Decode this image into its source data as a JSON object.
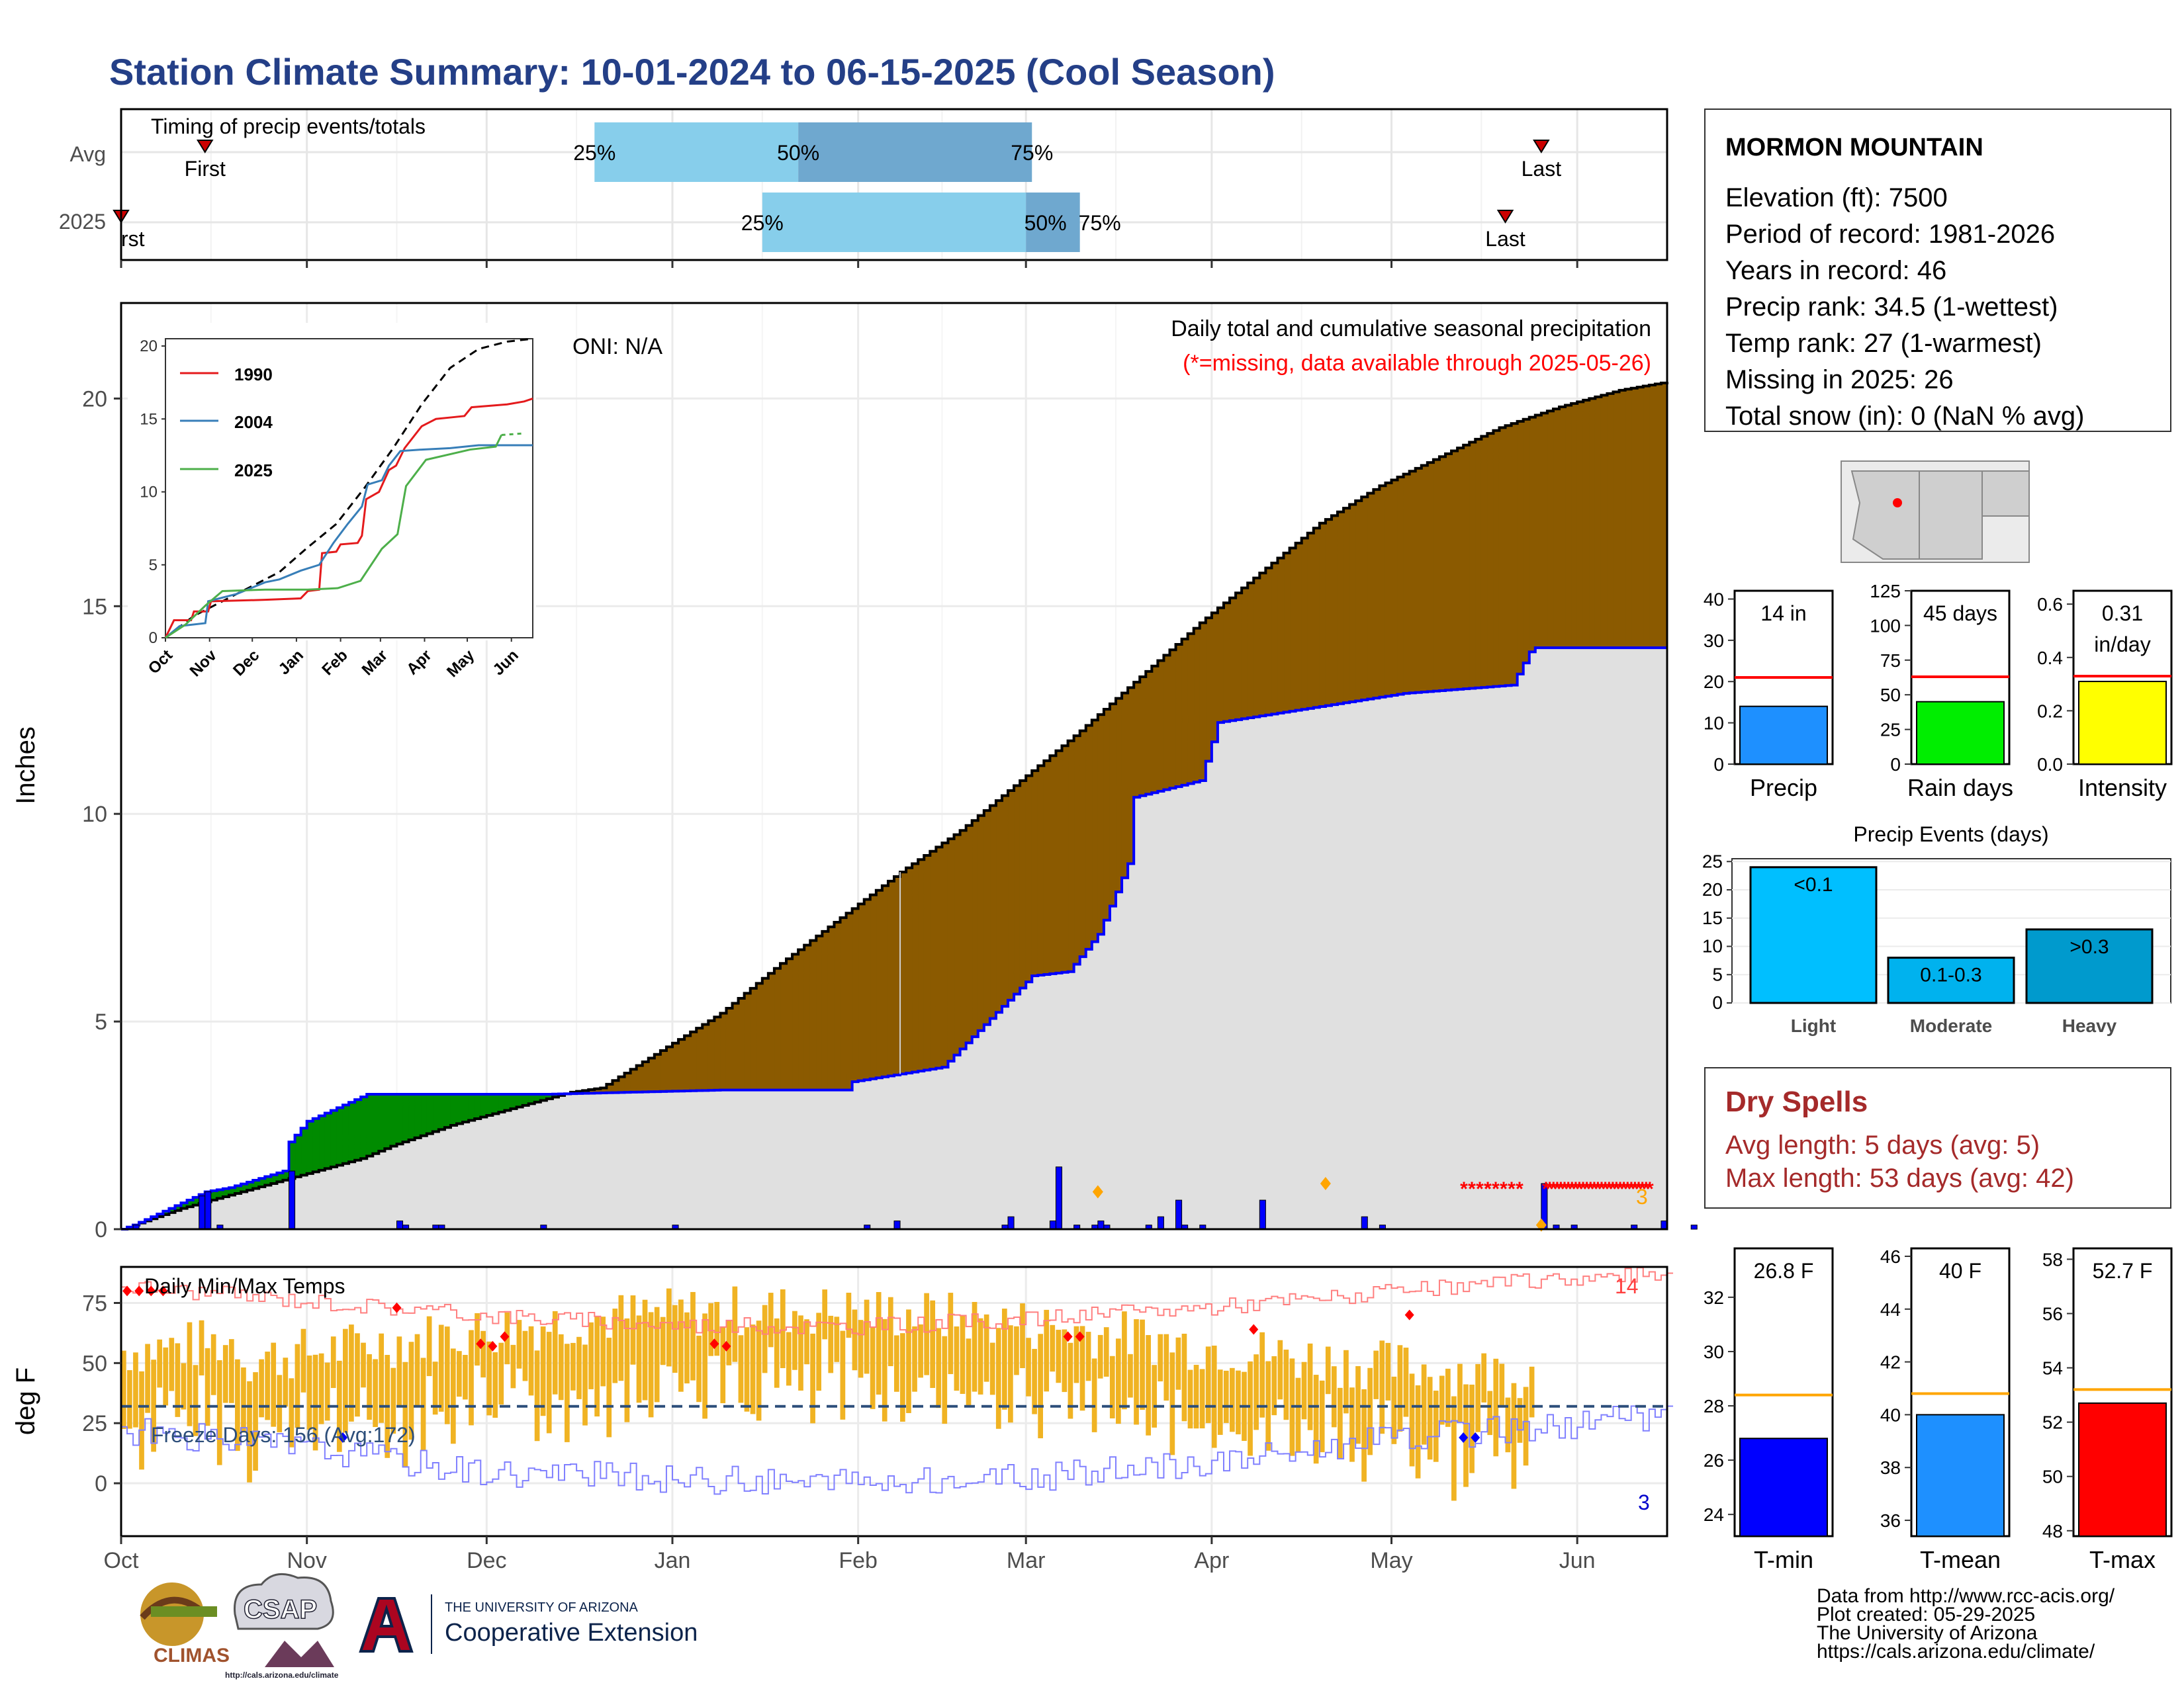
{
  "title": "Station Climate Summary: 10-01-2024 to 06-15-2025 (Cool Season)",
  "colors": {
    "title": "#243f87",
    "cum_avg_fill": "#8b5a00",
    "cum_surplus_fill": "#008b00",
    "cum_current_line": "#0000ff",
    "missing": "#ff0000",
    "temp_bar": "#f0b323",
    "record_high": "#ff7f7f",
    "record_low": "#8080ff",
    "freeze_line": "#2c4e7a",
    "dry_spells": "#a52a2a"
  },
  "month_labels": [
    "Oct",
    "Nov",
    "Dec",
    "Jan",
    "Feb",
    "Mar",
    "Apr",
    "May",
    "Jun"
  ],
  "timing": {
    "title": "Timing of precip events/totals",
    "row_labels": [
      "Avg",
      "2025"
    ],
    "first_label": "First",
    "first_label_2025": "rst",
    "last_label": "Last",
    "pct_labels": [
      "25%",
      "50%",
      "75%"
    ]
  },
  "precip_panel": {
    "ylabel": "Inches",
    "ticks": [
      "0",
      "5",
      "10",
      "15",
      "20"
    ],
    "oni_text": "ONI: N/A",
    "caption": "Daily total and cumulative seasonal precipitation",
    "missing_note": "(*=missing, data available through 2025-05-26)",
    "corner_count": "3",
    "inset": {
      "ticks": [
        "0",
        "5",
        "10",
        "15",
        "20"
      ],
      "month_labels": [
        "Oct",
        "Nov",
        "Dec",
        "Jan",
        "Feb",
        "Mar",
        "Apr",
        "May",
        "Jun"
      ],
      "legend": [
        {
          "name": "1990",
          "color": "#e41a1c"
        },
        {
          "name": "2004",
          "color": "#377eb8"
        },
        {
          "name": "2025",
          "color": "#4daf4a"
        }
      ]
    }
  },
  "temp_panel": {
    "ylabel": "deg F",
    "title": "Daily Min/Max Temps",
    "ticks": [
      "0",
      "25",
      "50",
      "75"
    ],
    "freeze_text": "Freeze Days: 156 (Avg:172)",
    "high_count": "14",
    "low_count": "3"
  },
  "station": {
    "name": "MORMON MOUNTAIN",
    "lines": [
      "Elevation (ft): 7500",
      "Period of record: 1981-2026",
      "Years in record: 46",
      "Precip rank: 34.5 (1-wettest)",
      "Temp rank: 27 (1-warmest)",
      "Missing in 2025: 26",
      "Total snow (in): 0 (NaN % avg)"
    ]
  },
  "summary_bars": [
    {
      "label": "Precip",
      "value_text": "14 in",
      "value": 14,
      "avg": 21,
      "ymax": 42,
      "ticks": [
        "0",
        "10",
        "20",
        "30",
        "40"
      ],
      "color": "#1e90ff"
    },
    {
      "label": "Rain days",
      "value_text": "45 days",
      "value": 45,
      "avg": 63,
      "ymax": 125,
      "ticks": [
        "0",
        "25",
        "50",
        "75",
        "100",
        "125"
      ],
      "color": "#00ee00"
    },
    {
      "label": "Intensity",
      "value_text": "0.31 in/day",
      "value": 0.31,
      "avg": 0.33,
      "ymax": 0.65,
      "ticks": [
        "0.0",
        "0.2",
        "0.4",
        "0.6"
      ],
      "color": "#ffff00"
    }
  ],
  "precip_events": {
    "title": "Precip Events (days)",
    "ticks": [
      "0",
      "5",
      "10",
      "15",
      "20",
      "25"
    ],
    "bars": [
      {
        "category": "Light",
        "label": "<0.1",
        "value": 24,
        "color": "#00bfff"
      },
      {
        "category": "Moderate",
        "label": "0.1-0.3",
        "value": 8,
        "color": "#00b2ee"
      },
      {
        "category": "Heavy",
        "label": ">0.3",
        "value": 13,
        "color": "#009acd"
      }
    ]
  },
  "dry_spells": {
    "title": "Dry Spells",
    "lines": [
      "Avg length: 5 days (avg: 5)",
      "Max length: 53 days (avg: 42)"
    ]
  },
  "temp_bars": [
    {
      "label": "T-min",
      "value_text": "26.8 F",
      "value": 26.8,
      "avg": 28.4,
      "ymin": 23.2,
      "ymax": 33.8,
      "ticks": [
        "24",
        "26",
        "28",
        "30",
        "32"
      ],
      "color": "#0000ff"
    },
    {
      "label": "T-mean",
      "value_text": "40 F",
      "value": 40.0,
      "avg": 40.8,
      "ymin": 35.4,
      "ymax": 46.3,
      "ticks": [
        "36",
        "38",
        "40",
        "42",
        "44",
        "46"
      ],
      "color": "#1e90ff"
    },
    {
      "label": "T-max",
      "value_text": "52.7 F",
      "value": 52.7,
      "avg": 53.2,
      "ymin": 47.8,
      "ymax": 58.4,
      "ticks": [
        "48",
        "50",
        "52",
        "54",
        "56",
        "58"
      ],
      "color": "#ff0000"
    }
  ],
  "footer": {
    "credits": [
      "Data from http://www.rcc-acis.org/",
      "Plot created: 05-29-2025",
      "The University of Arizona",
      "https://cals.arizona.edu/climate/"
    ],
    "logos": {
      "climas": "CLIMAS",
      "csap": "CSAP",
      "csap_url": "http://cals.arizona.edu/climate",
      "ua_small": "THE UNIVERSITY OF ARIZONA",
      "ua_big": "Cooperative Extension"
    }
  },
  "chart_data": [
    {
      "type": "bar",
      "title": "Timing of precip events/totals",
      "categories": [
        "Avg",
        "2025"
      ],
      "series": [
        {
          "name": "Avg",
          "first": "10-15",
          "p25": "12-19",
          "p50": "01-22",
          "p75": "03-02",
          "last": "05-26"
        },
        {
          "name": "2025",
          "first": "10-01",
          "p25": "01-16",
          "p50": "03-01",
          "p75": "03-10",
          "last": "05-20"
        }
      ]
    },
    {
      "type": "area",
      "title": "Daily total and cumulative seasonal precipitation",
      "ylabel": "Inches",
      "ylim": [
        0,
        22.3
      ],
      "x_range": [
        "2024-10-01",
        "2025-06-15"
      ],
      "series": [
        {
          "name": "Average cumulative",
          "x": [
            0,
            10,
            20,
            30,
            40,
            45,
            55,
            65,
            70,
            75,
            80,
            90,
            100,
            110,
            120,
            130,
            140,
            145,
            150,
            160,
            170,
            180,
            190,
            200,
            210,
            220,
            230,
            240,
            250,
            258
          ],
          "y": [
            0,
            0.5,
            0.9,
            1.3,
            1.7,
            2.0,
            2.5,
            2.9,
            3.1,
            3.3,
            3.4,
            4.3,
            5.2,
            6.4,
            7.5,
            8.6,
            9.6,
            10.2,
            10.8,
            12.0,
            13.3,
            14.6,
            15.8,
            17.0,
            17.9,
            18.6,
            19.3,
            19.8,
            20.2,
            20.4
          ]
        },
        {
          "name": "2025 cumulative",
          "x": [
            0,
            2,
            14,
            18,
            27,
            28,
            31,
            41,
            47,
            55,
            61,
            71,
            100,
            121,
            122,
            137,
            152,
            158,
            163,
            168,
            169,
            180,
            183,
            214,
            232,
            235,
            236,
            245,
            259
          ],
          "y": [
            0,
            0.1,
            0.9,
            1.0,
            1.4,
            2.1,
            2.6,
            3.25,
            3.25,
            3.25,
            3.25,
            3.25,
            3.35,
            3.35,
            3.55,
            3.9,
            6.1,
            6.2,
            7.1,
            8.8,
            10.4,
            10.8,
            12.2,
            12.9,
            13.1,
            13.9,
            14.0,
            14.0,
            14.0
          ]
        }
      ],
      "daily_precip_days": [
        2,
        13,
        14,
        16,
        28,
        46,
        47,
        52,
        53,
        70,
        92,
        124,
        129,
        147,
        148,
        155,
        156,
        159,
        162,
        163,
        164,
        171,
        173,
        176,
        177,
        180,
        190,
        207,
        210,
        237,
        239,
        242,
        252,
        257,
        262
      ],
      "daily_precip_values": [
        0.1,
        0.8,
        0.9,
        0.1,
        1.4,
        0.2,
        0.1,
        0.1,
        0.1,
        0.1,
        0.1,
        0.1,
        0.2,
        0.1,
        0.3,
        0.2,
        1.5,
        0.1,
        0.1,
        0.2,
        0.1,
        0.1,
        0.3,
        0.7,
        0.1,
        0.1,
        0.7,
        0.3,
        0.1,
        1.1,
        0.1,
        0.1,
        0.1,
        0.2,
        0.1
      ]
    },
    {
      "type": "line",
      "title": "Daily Min/Max Temps",
      "ylabel": "deg F",
      "ylim": [
        -22,
        90
      ],
      "freeze_threshold": 32,
      "series": [
        {
          "name": "Record high",
          "x": [
            0,
            30,
            60,
            90,
            120,
            150,
            180,
            210,
            240,
            258
          ],
          "y": [
            82,
            76,
            70,
            66,
            65,
            68,
            73,
            79,
            85,
            87
          ]
        },
        {
          "name": "Record low",
          "x": [
            0,
            30,
            60,
            90,
            120,
            150,
            180,
            210,
            240,
            258
          ],
          "y": [
            22,
            15,
            5,
            2,
            0,
            2,
            8,
            18,
            24,
            28
          ]
        }
      ]
    },
    {
      "type": "bar",
      "title": "Precip Events (days)",
      "categories": [
        "Light",
        "Moderate",
        "Heavy"
      ],
      "values": [
        24,
        8,
        13
      ],
      "labels": [
        "<0.1",
        "0.1-0.3",
        ">0.3"
      ]
    }
  ]
}
